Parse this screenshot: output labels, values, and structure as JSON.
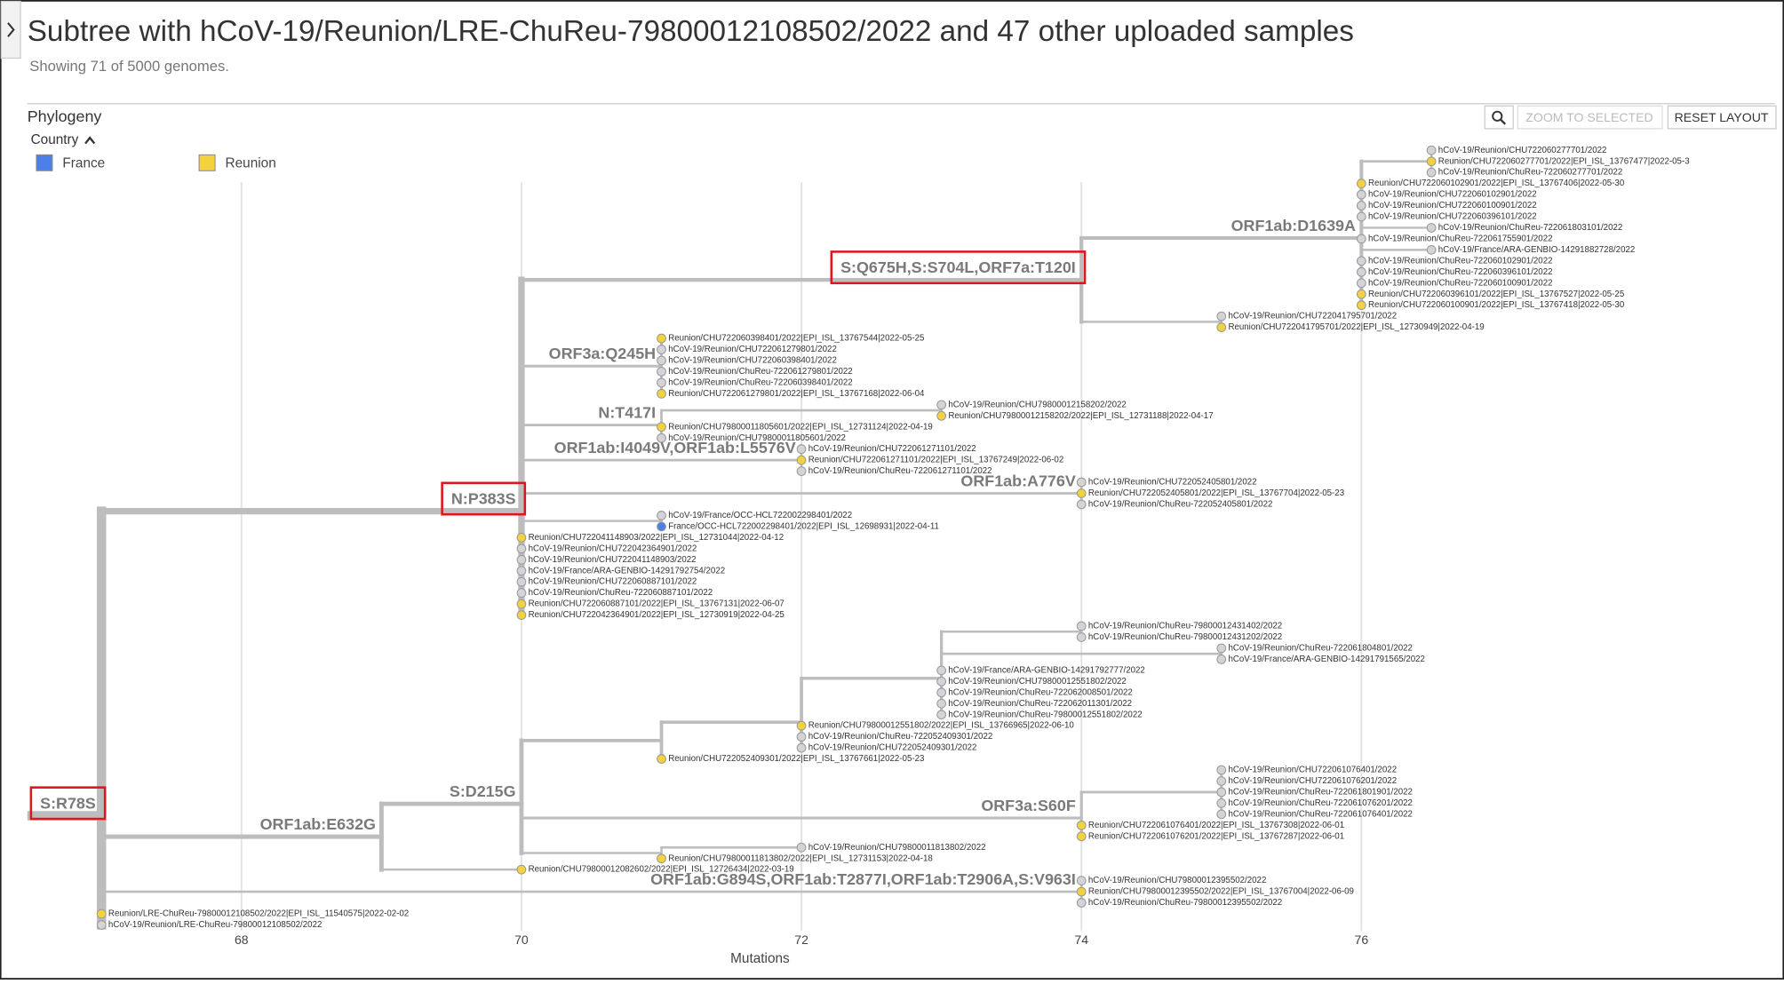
{
  "page": {
    "title": "Subtree with hCoV-19/Reunion/LRE-ChuReu-79800012108502/2022 and 47 other uploaded samples",
    "subtitle": "Showing 71 of 5000 genomes.",
    "panel_title": "Phylogeny",
    "zoom_button": "ZOOM TO SELECTED",
    "reset_button": "RESET LAYOUT"
  },
  "chart_data": {
    "type": "tree",
    "xlabel": "Mutations",
    "xlim": [
      66.47,
      78.97
    ],
    "xticks": [
      68,
      70,
      72,
      74,
      76
    ],
    "grid": true,
    "legend_title": "Country",
    "legend": [
      {
        "name": "France",
        "color": "#4c7fe8"
      },
      {
        "name": "Reunion",
        "color": "#f3d23e"
      }
    ],
    "tip_color": "#d4d4d8",
    "branch_color": "#bdbdbd",
    "highlight_color": "#e0151b",
    "tree": {
      "div": 67,
      "label": "S:R78S",
      "highlighted": true,
      "children": [
        {
          "div": 70,
          "label": "N:P383S",
          "highlighted": true,
          "children": [
            {
              "div": 74,
              "label": "S:Q675H,S:S704L,ORF7a:T120I",
              "highlighted": true,
              "children": [
                {
                  "div": 76,
                  "label": "ORF1ab:D1639A",
                  "children": [
                    {
                      "div": 76.5,
                      "children": [
                        {
                          "name": "hCoV-19/Reunion/CHU722060277701/2022",
                          "div": 76.5
                        },
                        {
                          "name": "Reunion/CHU722060277701/2022|EPI_ISL_13767477|2022-05-3",
                          "div": 76.5,
                          "country": "Reunion"
                        },
                        {
                          "name": "hCoV-19/Reunion/ChuReu-722060277701/2022",
                          "div": 76.5
                        }
                      ]
                    },
                    {
                      "name": "Reunion/CHU722060102901/2022|EPI_ISL_13767406|2022-05-30",
                      "div": 76,
                      "country": "Reunion"
                    },
                    {
                      "name": "hCoV-19/Reunion/CHU722060102901/2022",
                      "div": 76
                    },
                    {
                      "name": "hCoV-19/Reunion/CHU722060100901/2022",
                      "div": 76
                    },
                    {
                      "name": "hCoV-19/Reunion/CHU722060396101/2022",
                      "div": 76
                    },
                    {
                      "name": "hCoV-19/Reunion/ChuReu-722061803101/2022",
                      "div": 76.5
                    },
                    {
                      "name": "hCoV-19/Reunion/ChuReu-722061755901/2022",
                      "div": 76
                    },
                    {
                      "name": "hCoV-19/France/ARA-GENBIO-14291882728/2022",
                      "div": 76.5
                    },
                    {
                      "name": "hCoV-19/Reunion/ChuReu-722060102901/2022",
                      "div": 76
                    },
                    {
                      "name": "hCoV-19/Reunion/ChuReu-722060396101/2022",
                      "div": 76
                    },
                    {
                      "name": "hCoV-19/Reunion/ChuReu-722060100901/2022",
                      "div": 76
                    },
                    {
                      "name": "Reunion/CHU722060396101/2022|EPI_ISL_13767527|2022-05-25",
                      "div": 76,
                      "country": "Reunion"
                    },
                    {
                      "name": "Reunion/CHU722060100901/2022|EPI_ISL_13767418|2022-05-30",
                      "div": 76,
                      "country": "Reunion"
                    }
                  ]
                },
                {
                  "div": 75,
                  "children": [
                    {
                      "name": "hCoV-19/Reunion/CHU722041795701/2022",
                      "div": 75
                    },
                    {
                      "name": "Reunion/CHU722041795701/2022|EPI_ISL_12730949|2022-04-19",
                      "div": 75,
                      "country": "Reunion"
                    }
                  ]
                }
              ]
            },
            {
              "div": 71,
              "label": "ORF3a:Q245H",
              "children": [
                {
                  "name": "Reunion/CHU722060398401/2022|EPI_ISL_13767544|2022-05-25",
                  "div": 71,
                  "country": "Reunion"
                },
                {
                  "name": "hCoV-19/Reunion/CHU722061279801/2022",
                  "div": 71
                },
                {
                  "name": "hCoV-19/Reunion/CHU722060398401/2022",
                  "div": 71
                },
                {
                  "name": "hCoV-19/Reunion/ChuReu-722061279801/2022",
                  "div": 71
                },
                {
                  "name": "hCoV-19/Reunion/ChuReu-722060398401/2022",
                  "div": 71
                },
                {
                  "name": "Reunion/CHU722061279801/2022|EPI_ISL_13767168|2022-06-04",
                  "div": 71,
                  "country": "Reunion"
                }
              ]
            },
            {
              "div": 71,
              "label": "N:T417I",
              "children": [
                {
                  "div": 73,
                  "children": [
                    {
                      "name": "hCoV-19/Reunion/CHU79800012158202/2022",
                      "div": 73
                    },
                    {
                      "name": "Reunion/CHU79800012158202/2022|EPI_ISL_12731188|2022-04-17",
                      "div": 73,
                      "country": "Reunion"
                    }
                  ]
                },
                {
                  "name": "Reunion/CHU79800011805601/2022|EPI_ISL_12731124|2022-04-19",
                  "div": 71,
                  "country": "Reunion"
                },
                {
                  "name": "hCoV-19/Reunion/CHU79800011805601/2022",
                  "div": 71
                }
              ]
            },
            {
              "div": 72,
              "label": "ORF1ab:I4049V,ORF1ab:L5576V",
              "children": [
                {
                  "name": "hCoV-19/Reunion/CHU722061271101/2022",
                  "div": 72
                },
                {
                  "name": "Reunion/CHU722061271101/2022|EPI_ISL_13767249|2022-06-02",
                  "div": 72,
                  "country": "Reunion"
                },
                {
                  "name": "hCoV-19/Reunion/ChuReu-722061271101/2022",
                  "div": 72
                }
              ]
            },
            {
              "div": 74,
              "label": "ORF1ab:A776V",
              "children": [
                {
                  "name": "hCoV-19/Reunion/CHU722052405801/2022",
                  "div": 74
                },
                {
                  "name": "Reunion/CHU722052405801/2022|EPI_ISL_13767704|2022-05-23",
                  "div": 74,
                  "country": "Reunion"
                },
                {
                  "name": "hCoV-19/Reunion/ChuReu-722052405801/2022",
                  "div": 74
                }
              ]
            },
            {
              "div": 71,
              "children": [
                {
                  "name": "hCoV-19/France/OCC-HCL722002298401/2022",
                  "div": 71
                },
                {
                  "name": "France/OCC-HCL722002298401/2022|EPI_ISL_12698931|2022-04-11",
                  "div": 71,
                  "country": "France"
                }
              ]
            },
            {
              "name": "Reunion/CHU722041148903/2022|EPI_ISL_12731044|2022-04-12",
              "div": 70,
              "country": "Reunion"
            },
            {
              "name": "hCoV-19/Reunion/CHU722042364901/2022",
              "div": 70
            },
            {
              "name": "hCoV-19/Reunion/CHU722041148903/2022",
              "div": 70
            },
            {
              "name": "hCoV-19/France/ARA-GENBIO-14291792754/2022",
              "div": 70
            },
            {
              "name": "hCoV-19/Reunion/CHU722060887101/2022",
              "div": 70
            },
            {
              "name": "hCoV-19/Reunion/ChuReu-722060887101/2022",
              "div": 70
            },
            {
              "name": "Reunion/CHU722060887101/2022|EPI_ISL_13767131|2022-06-07",
              "div": 70,
              "country": "Reunion"
            },
            {
              "name": "Reunion/CHU722042364901/2022|EPI_ISL_12730919|2022-04-25",
              "div": 70,
              "country": "Reunion"
            }
          ]
        },
        {
          "div": 69,
          "label": "ORF1ab:E632G",
          "children": [
            {
              "div": 70,
              "label": "S:D215G",
              "children": [
                {
                  "div": 71,
                  "children": [
                    {
                      "div": 72,
                      "children": [
                        {
                          "div": 73,
                          "children": [
                            {
                              "div": 74,
                              "children": [
                                {
                                  "name": "hCoV-19/Reunion/ChuReu-79800012431402/2022",
                                  "div": 74
                                },
                                {
                                  "name": "hCoV-19/Reunion/ChuReu-79800012431202/2022",
                                  "div": 74
                                }
                              ]
                            },
                            {
                              "div": 75,
                              "children": [
                                {
                                  "name": "hCoV-19/Reunion/ChuReu-722061804801/2022",
                                  "div": 75
                                },
                                {
                                  "name": "hCoV-19/France/ARA-GENBIO-14291791565/2022",
                                  "div": 75
                                }
                              ]
                            },
                            {
                              "name": "hCoV-19/France/ARA-GENBIO-14291792777/2022",
                              "div": 73
                            },
                            {
                              "name": "hCoV-19/Reunion/CHU79800012551802/2022",
                              "div": 73
                            },
                            {
                              "name": "hCoV-19/Reunion/ChuReu-722062008501/2022",
                              "div": 73
                            },
                            {
                              "name": "hCoV-19/Reunion/ChuReu-722062011301/2022",
                              "div": 73
                            },
                            {
                              "name": "hCoV-19/Reunion/ChuReu-79800012551802/2022",
                              "div": 73
                            }
                          ]
                        },
                        {
                          "name": "Reunion/CHU79800012551802/2022|EPI_ISL_13766965|2022-06-10",
                          "div": 72,
                          "country": "Reunion"
                        },
                        {
                          "name": "hCoV-19/Reunion/ChuReu-722052409301/2022",
                          "div": 72
                        },
                        {
                          "name": "hCoV-19/Reunion/CHU722052409301/2022",
                          "div": 72
                        }
                      ]
                    },
                    {
                      "name": "Reunion/CHU722052409301/2022|EPI_ISL_13767661|2022-05-23",
                      "div": 71,
                      "country": "Reunion"
                    }
                  ]
                },
                {
                  "div": 74,
                  "label": "ORF3a:S60F",
                  "children": [
                    {
                      "div": 75,
                      "children": [
                        {
                          "name": "hCoV-19/Reunion/CHU722061076401/2022",
                          "div": 75
                        },
                        {
                          "name": "hCoV-19/Reunion/CHU722061076201/2022",
                          "div": 75
                        },
                        {
                          "name": "hCoV-19/Reunion/ChuReu-722061801901/2022",
                          "div": 75
                        },
                        {
                          "name": "hCoV-19/Reunion/ChuReu-722061076201/2022",
                          "div": 75
                        },
                        {
                          "name": "hCoV-19/Reunion/ChuReu-722061076401/2022",
                          "div": 75
                        }
                      ]
                    },
                    {
                      "name": "Reunion/CHU722061076401/2022|EPI_ISL_13767308|2022-06-01",
                      "div": 74,
                      "country": "Reunion"
                    },
                    {
                      "name": "Reunion/CHU722061076201/2022|EPI_ISL_13767287|2022-06-01",
                      "div": 74,
                      "country": "Reunion"
                    }
                  ]
                },
                {
                  "div": 71,
                  "children": [
                    {
                      "name": "hCoV-19/Reunion/CHU79800011813802/2022",
                      "div": 72
                    },
                    {
                      "name": "Reunion/CHU79800011813802/2022|EPI_ISL_12731153|2022-04-18",
                      "div": 71,
                      "country": "Reunion"
                    }
                  ]
                }
              ]
            },
            {
              "name": "Reunion/CHU79800012082602/2022|EPI_ISL_12726434|2022-03-19",
              "div": 70,
              "country": "Reunion"
            }
          ]
        },
        {
          "div": 74,
          "label": "ORF1ab:G894S,ORF1ab:T2877I,ORF1ab:T2906A,S:V963I",
          "children": [
            {
              "name": "hCoV-19/Reunion/CHU79800012395502/2022",
              "div": 74
            },
            {
              "name": "Reunion/CHU79800012395502/2022|EPI_ISL_13767004|2022-06-09",
              "div": 74,
              "country": "Reunion"
            },
            {
              "name": "hCoV-19/Reunion/ChuReu-79800012395502/2022",
              "div": 74
            }
          ]
        },
        {
          "name": "Reunion/LRE-ChuReu-79800012108502/2022|EPI_ISL_11540575|2022-02-02",
          "div": 67,
          "country": "Reunion"
        },
        {
          "name": "hCoV-19/Reunion/LRE-ChuReu-79800012108502/2022",
          "div": 67
        }
      ]
    }
  }
}
